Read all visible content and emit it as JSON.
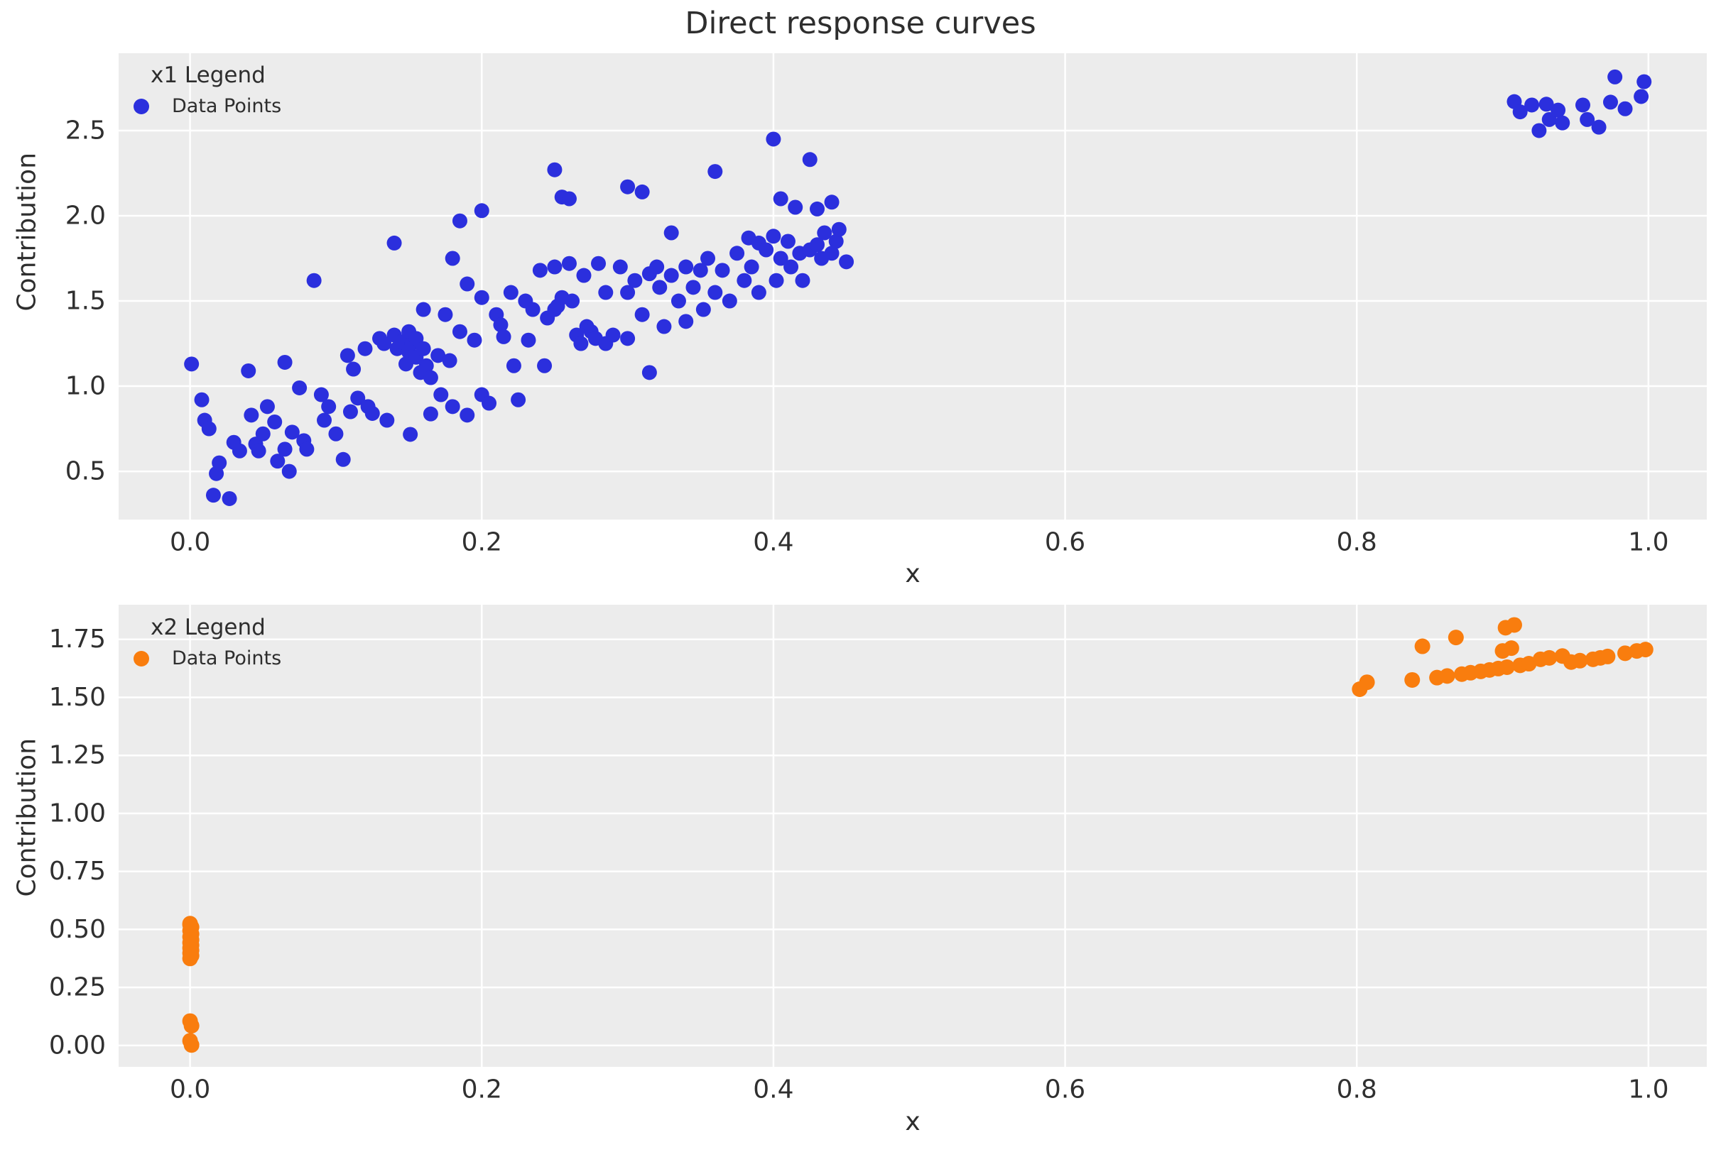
{
  "figure": {
    "title": "Direct response curves",
    "background": "#ffffff",
    "panel_background": "#ececec",
    "grid_color": "#ffffff",
    "text_color": "#303030"
  },
  "chart_data": [
    {
      "type": "scatter",
      "title": "",
      "xlabel": "x",
      "ylabel": "Contribution",
      "legend": {
        "title": "x1 Legend",
        "position": "upper left",
        "items": [
          {
            "label": "Data Points",
            "color": "#2b2fdd"
          }
        ]
      },
      "grid": true,
      "xlim": [
        -0.049,
        1.04
      ],
      "ylim": [
        0.217,
        2.954
      ],
      "xticks": [
        0.0,
        0.2,
        0.4,
        0.6,
        0.8,
        1.0
      ],
      "xtick_labels": [
        "0.0",
        "0.2",
        "0.4",
        "0.6",
        "0.8",
        "1.0"
      ],
      "yticks": [
        0.5,
        1.0,
        1.5,
        2.0,
        2.5
      ],
      "ytick_labels": [
        "0.5",
        "1.0",
        "1.5",
        "2.0",
        "2.5"
      ],
      "series": [
        {
          "name": "Data Points",
          "color": "#2b2fdd",
          "marker_radius": 10.5,
          "points": [
            [
              0.001,
              1.13
            ],
            [
              0.008,
              0.92
            ],
            [
              0.01,
              0.8
            ],
            [
              0.013,
              0.75
            ],
            [
              0.016,
              0.36
            ],
            [
              0.018,
              0.487
            ],
            [
              0.02,
              0.55
            ],
            [
              0.027,
              0.34
            ],
            [
              0.03,
              0.67
            ],
            [
              0.034,
              0.62
            ],
            [
              0.04,
              1.09
            ],
            [
              0.042,
              0.83
            ],
            [
              0.045,
              0.66
            ],
            [
              0.047,
              0.62
            ],
            [
              0.05,
              0.72
            ],
            [
              0.053,
              0.88
            ],
            [
              0.058,
              0.79
            ],
            [
              0.06,
              0.56
            ],
            [
              0.065,
              1.14
            ],
            [
              0.065,
              0.63
            ],
            [
              0.068,
              0.5
            ],
            [
              0.07,
              0.73
            ],
            [
              0.075,
              0.99
            ],
            [
              0.078,
              0.68
            ],
            [
              0.08,
              0.63
            ],
            [
              0.085,
              1.62
            ],
            [
              0.09,
              0.95
            ],
            [
              0.092,
              0.8
            ],
            [
              0.095,
              0.88
            ],
            [
              0.1,
              0.72
            ],
            [
              0.105,
              0.57
            ],
            [
              0.108,
              1.18
            ],
            [
              0.11,
              0.85
            ],
            [
              0.112,
              1.1
            ],
            [
              0.115,
              0.93
            ],
            [
              0.12,
              1.22
            ],
            [
              0.122,
              0.88
            ],
            [
              0.125,
              0.84
            ],
            [
              0.13,
              1.28
            ],
            [
              0.133,
              1.25
            ],
            [
              0.135,
              0.8
            ],
            [
              0.14,
              1.84
            ],
            [
              0.14,
              1.3
            ],
            [
              0.142,
              1.22
            ],
            [
              0.145,
              1.26
            ],
            [
              0.148,
              1.13
            ],
            [
              0.15,
              1.32
            ],
            [
              0.15,
              1.2
            ],
            [
              0.151,
              0.717
            ],
            [
              0.152,
              1.25
            ],
            [
              0.155,
              1.17
            ],
            [
              0.155,
              1.28
            ],
            [
              0.158,
              1.08
            ],
            [
              0.16,
              1.45
            ],
            [
              0.16,
              1.22
            ],
            [
              0.162,
              1.12
            ],
            [
              0.165,
              1.05
            ],
            [
              0.165,
              0.837
            ],
            [
              0.17,
              1.18
            ],
            [
              0.172,
              0.95
            ],
            [
              0.175,
              1.42
            ],
            [
              0.178,
              1.15
            ],
            [
              0.18,
              1.75
            ],
            [
              0.18,
              0.88
            ],
            [
              0.185,
              1.97
            ],
            [
              0.185,
              1.32
            ],
            [
              0.19,
              1.6
            ],
            [
              0.19,
              0.83
            ],
            [
              0.195,
              1.27
            ],
            [
              0.2,
              2.03
            ],
            [
              0.2,
              1.52
            ],
            [
              0.2,
              0.95
            ],
            [
              0.205,
              0.9
            ],
            [
              0.21,
              1.42
            ],
            [
              0.213,
              1.36
            ],
            [
              0.215,
              1.29
            ],
            [
              0.22,
              1.55
            ],
            [
              0.222,
              1.12
            ],
            [
              0.225,
              0.92
            ],
            [
              0.23,
              1.5
            ],
            [
              0.232,
              1.27
            ],
            [
              0.235,
              1.45
            ],
            [
              0.24,
              1.68
            ],
            [
              0.243,
              1.12
            ],
            [
              0.245,
              1.4
            ],
            [
              0.25,
              2.27
            ],
            [
              0.25,
              1.7
            ],
            [
              0.25,
              1.45
            ],
            [
              0.252,
              1.47
            ],
            [
              0.255,
              2.11
            ],
            [
              0.255,
              1.52
            ],
            [
              0.26,
              2.1
            ],
            [
              0.26,
              1.72
            ],
            [
              0.262,
              1.5
            ],
            [
              0.265,
              1.3
            ],
            [
              0.268,
              1.25
            ],
            [
              0.27,
              1.65
            ],
            [
              0.272,
              1.35
            ],
            [
              0.275,
              1.32
            ],
            [
              0.278,
              1.28
            ],
            [
              0.28,
              1.72
            ],
            [
              0.285,
              1.55
            ],
            [
              0.285,
              1.25
            ],
            [
              0.29,
              1.3
            ],
            [
              0.295,
              1.7
            ],
            [
              0.3,
              2.17
            ],
            [
              0.3,
              1.55
            ],
            [
              0.3,
              1.28
            ],
            [
              0.305,
              1.62
            ],
            [
              0.31,
              2.14
            ],
            [
              0.31,
              1.42
            ],
            [
              0.315,
              1.66
            ],
            [
              0.315,
              1.08
            ],
            [
              0.32,
              1.7
            ],
            [
              0.322,
              1.58
            ],
            [
              0.325,
              1.35
            ],
            [
              0.33,
              1.9
            ],
            [
              0.33,
              1.65
            ],
            [
              0.335,
              1.5
            ],
            [
              0.34,
              1.7
            ],
            [
              0.34,
              1.38
            ],
            [
              0.345,
              1.58
            ],
            [
              0.35,
              1.68
            ],
            [
              0.352,
              1.45
            ],
            [
              0.355,
              1.75
            ],
            [
              0.36,
              2.26
            ],
            [
              0.36,
              1.55
            ],
            [
              0.365,
              1.68
            ],
            [
              0.37,
              1.5
            ],
            [
              0.375,
              1.78
            ],
            [
              0.38,
              1.62
            ],
            [
              0.383,
              1.87
            ],
            [
              0.385,
              1.7
            ],
            [
              0.39,
              1.84
            ],
            [
              0.39,
              1.55
            ],
            [
              0.395,
              1.8
            ],
            [
              0.4,
              2.45
            ],
            [
              0.4,
              1.88
            ],
            [
              0.402,
              1.62
            ],
            [
              0.405,
              2.1
            ],
            [
              0.405,
              1.75
            ],
            [
              0.41,
              1.85
            ],
            [
              0.412,
              1.7
            ],
            [
              0.415,
              2.05
            ],
            [
              0.418,
              1.78
            ],
            [
              0.42,
              1.62
            ],
            [
              0.425,
              2.33
            ],
            [
              0.425,
              1.8
            ],
            [
              0.43,
              2.04
            ],
            [
              0.43,
              1.83
            ],
            [
              0.433,
              1.75
            ],
            [
              0.435,
              1.9
            ],
            [
              0.44,
              2.08
            ],
            [
              0.44,
              1.78
            ],
            [
              0.443,
              1.85
            ],
            [
              0.445,
              1.92
            ],
            [
              0.45,
              1.73
            ],
            [
              0.908,
              2.67
            ],
            [
              0.912,
              2.61
            ],
            [
              0.92,
              2.65
            ],
            [
              0.925,
              2.5
            ],
            [
              0.93,
              2.655
            ],
            [
              0.932,
              2.565
            ],
            [
              0.938,
              2.62
            ],
            [
              0.941,
              2.545
            ],
            [
              0.955,
              2.65
            ],
            [
              0.958,
              2.565
            ],
            [
              0.966,
              2.52
            ],
            [
              0.974,
              2.667
            ],
            [
              0.977,
              2.815
            ],
            [
              0.984,
              2.628
            ],
            [
              0.995,
              2.7
            ],
            [
              0.997,
              2.787
            ]
          ]
        }
      ]
    },
    {
      "type": "scatter",
      "title": "",
      "xlabel": "x",
      "ylabel": "Contribution",
      "legend": {
        "title": "x2 Legend",
        "position": "upper left",
        "items": [
          {
            "label": "Data Points",
            "color": "#f97d0e"
          }
        ]
      },
      "grid": true,
      "xlim": [
        -0.049,
        1.04
      ],
      "ylim": [
        -0.092,
        1.899
      ],
      "xticks": [
        0.0,
        0.2,
        0.4,
        0.6,
        0.8,
        1.0
      ],
      "xtick_labels": [
        "0.0",
        "0.2",
        "0.4",
        "0.6",
        "0.8",
        "1.0"
      ],
      "yticks": [
        0.0,
        0.25,
        0.5,
        0.75,
        1.0,
        1.25,
        1.5,
        1.75
      ],
      "ytick_labels": [
        "0.00",
        "0.25",
        "0.50",
        "0.75",
        "1.00",
        "1.25",
        "1.50",
        "1.75"
      ],
      "series": [
        {
          "name": "Data Points",
          "color": "#f97d0e",
          "marker_radius": 11,
          "points": [
            [
              0.0,
              0.525
            ],
            [
              0.001,
              0.51
            ],
            [
              0.0,
              0.495
            ],
            [
              0.001,
              0.48
            ],
            [
              0.0,
              0.468
            ],
            [
              0.001,
              0.455
            ],
            [
              0.0,
              0.443
            ],
            [
              0.001,
              0.432
            ],
            [
              0.0,
              0.42
            ],
            [
              0.001,
              0.41
            ],
            [
              0.0,
              0.398
            ],
            [
              0.001,
              0.387
            ],
            [
              0.0,
              0.375
            ],
            [
              0.0,
              0.52
            ],
            [
              0.0,
              0.105
            ],
            [
              0.001,
              0.085
            ],
            [
              0.0,
              0.02
            ],
            [
              0.001,
              0.002
            ],
            [
              0.802,
              1.535
            ],
            [
              0.807,
              1.565
            ],
            [
              0.838,
              1.575
            ],
            [
              0.845,
              1.72
            ],
            [
              0.855,
              1.585
            ],
            [
              0.862,
              1.592
            ],
            [
              0.868,
              1.758
            ],
            [
              0.872,
              1.6
            ],
            [
              0.878,
              1.606
            ],
            [
              0.885,
              1.612
            ],
            [
              0.891,
              1.618
            ],
            [
              0.897,
              1.624
            ],
            [
              0.903,
              1.63
            ],
            [
              0.9,
              1.7
            ],
            [
              0.906,
              1.712
            ],
            [
              0.902,
              1.8
            ],
            [
              0.908,
              1.812
            ],
            [
              0.912,
              1.638
            ],
            [
              0.918,
              1.645
            ],
            [
              0.926,
              1.664
            ],
            [
              0.932,
              1.67
            ],
            [
              0.941,
              1.678
            ],
            [
              0.947,
              1.652
            ],
            [
              0.953,
              1.658
            ],
            [
              0.962,
              1.664
            ],
            [
              0.967,
              1.67
            ],
            [
              0.972,
              1.676
            ],
            [
              0.984,
              1.69
            ],
            [
              0.992,
              1.7
            ],
            [
              0.998,
              1.706
            ]
          ]
        }
      ]
    }
  ]
}
